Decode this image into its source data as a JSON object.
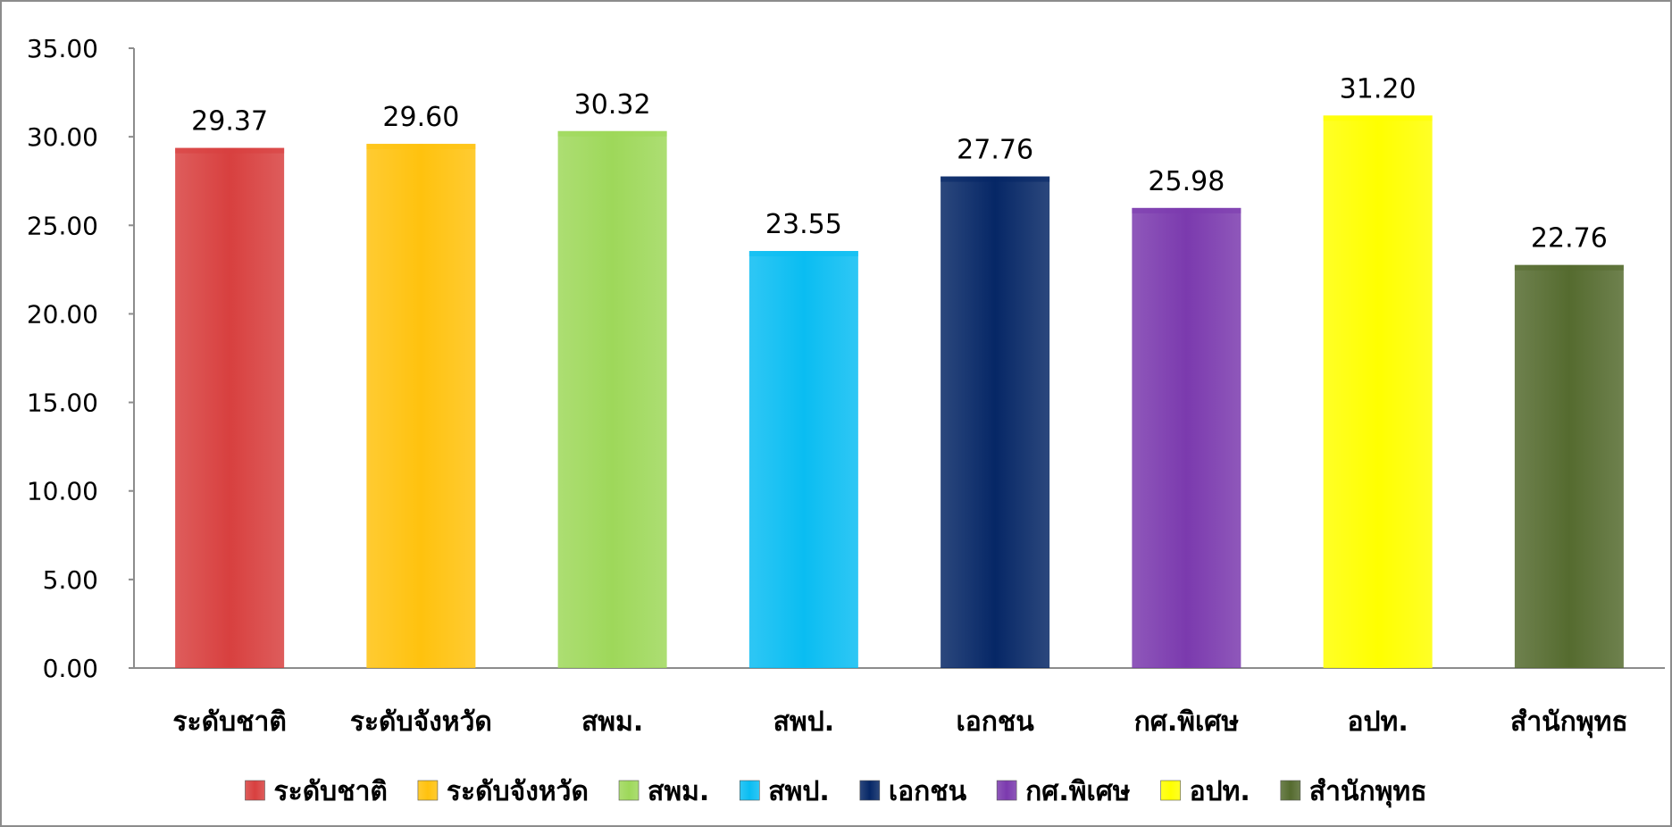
{
  "chart_data": {
    "type": "bar",
    "categories": [
      "ระดับชาติ",
      "ระดับจังหวัด",
      "สพม.",
      "สพป.",
      "เอกชน",
      "กศ.พิเศษ",
      "อปท.",
      "สำนักพุทธ"
    ],
    "values": [
      29.37,
      29.6,
      30.32,
      23.55,
      27.76,
      25.98,
      31.2,
      22.76
    ],
    "data_labels": [
      "29.37",
      "29.60",
      "30.32",
      "23.55",
      "27.76",
      "25.98",
      "31.20",
      "22.76"
    ],
    "colors": [
      "#D8403F",
      "#FFC20E",
      "#9ED85A",
      "#0ABDF2",
      "#062766",
      "#7B3AAE",
      "#FFFF00",
      "#556B2F"
    ],
    "ylim": [
      0,
      35
    ],
    "yticks": [
      "0.00",
      "5.00",
      "10.00",
      "15.00",
      "20.00",
      "25.00",
      "30.00",
      "35.00"
    ],
    "grid": false,
    "legend": "bottom",
    "title": "",
    "xlabel": "",
    "ylabel": ""
  }
}
